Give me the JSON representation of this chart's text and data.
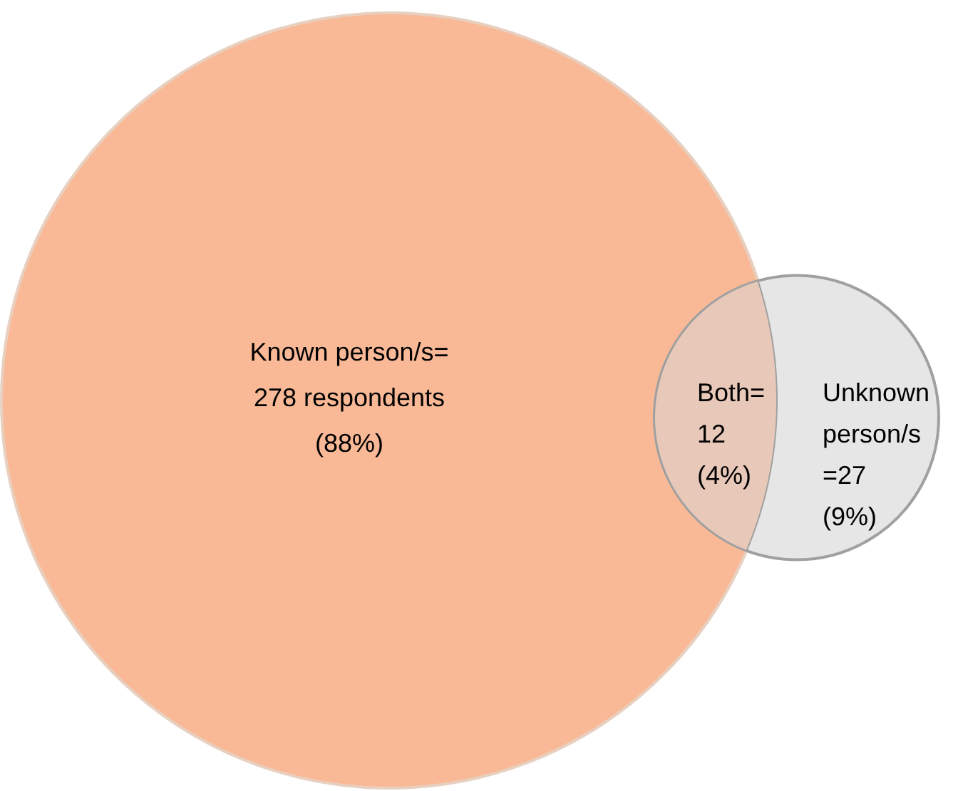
{
  "chart_data": {
    "type": "other",
    "categories": [
      "Known person/s=",
      "Both=",
      "Unknown person/s"
    ],
    "values": [
      278,
      12,
      27
    ],
    "value_labels": [
      "278 respondents\n(88%)",
      "12\n(4%)",
      "=27\n(9%)"
    ],
    "colors": [
      "#f9b996",
      "#e8c8b8",
      "#e6e6e6"
    ]
  }
}
